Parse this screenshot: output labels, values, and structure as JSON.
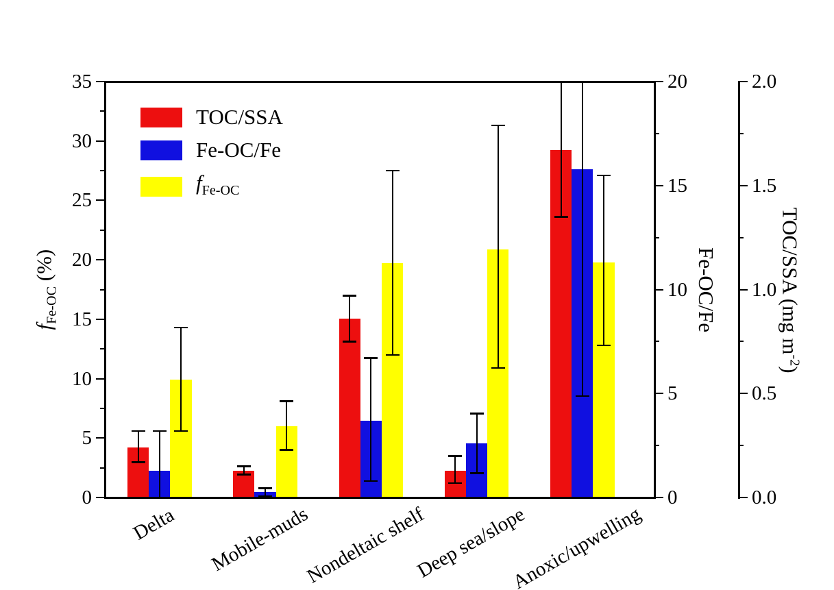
{
  "figure": {
    "background": "#ffffff"
  },
  "colors": {
    "axis": "#000000",
    "text": "#000000",
    "bar_red": "#ed0f0f",
    "bar_blue": "#1010e0",
    "bar_yellow": "#ffff00"
  },
  "chart_data": {
    "type": "bar",
    "title": "",
    "grid": false,
    "legend_position": "top-left-inside",
    "categories": [
      "Delta",
      "Mobile-muds",
      "Nondeltaic shelf",
      "Deep sea/slope",
      "Anoxic/upwelling"
    ],
    "series": [
      {
        "name": "TOC/SSA",
        "color": "#ed0f0f",
        "axis": "right2",
        "values": [
          0.24,
          0.13,
          0.86,
          0.13,
          1.67
        ],
        "err_lo": [
          0.17,
          0.11,
          0.75,
          0.07,
          1.35
        ],
        "err_hi": [
          0.32,
          0.15,
          0.97,
          0.2,
          2.0
        ],
        "cap_lo": [
          1,
          1,
          1,
          1,
          1
        ],
        "cap_hi": [
          1,
          1,
          1,
          1,
          0
        ]
      },
      {
        "name": "Fe-OC/Fe",
        "color": "#1010e0",
        "axis": "right1",
        "values": [
          1.3,
          0.25,
          3.7,
          2.6,
          15.8
        ],
        "err_lo": [
          0.0,
          0.07,
          0.8,
          1.17,
          4.87
        ],
        "err_hi": [
          3.2,
          0.44,
          6.7,
          4.04,
          20.0
        ],
        "cap_lo": [
          0,
          1,
          1,
          1,
          1
        ],
        "cap_hi": [
          1,
          1,
          1,
          1,
          0
        ]
      },
      {
        "name": "f_Fe-OC",
        "color": "#ffff00",
        "axis": "left",
        "values": [
          9.9,
          6.0,
          19.7,
          20.9,
          19.8
        ],
        "err_lo": [
          5.6,
          4.0,
          12.0,
          10.9,
          12.8
        ],
        "err_hi": [
          14.3,
          8.1,
          27.5,
          31.3,
          27.1
        ],
        "cap_lo": [
          1,
          1,
          1,
          1,
          1
        ],
        "cap_hi": [
          1,
          1,
          1,
          1,
          1
        ]
      }
    ],
    "axes": {
      "left": {
        "label_italic": "f",
        "label_sub": "Fe-OC",
        "label_suffix": " (%)",
        "min": 0,
        "max": 35,
        "major_step": 5,
        "minor_step": 2.5,
        "tick_labels": [
          "0",
          "5",
          "10",
          "15",
          "20",
          "25",
          "30",
          "35"
        ]
      },
      "right1": {
        "label": "Fe-OC/Fe",
        "min": 0,
        "max": 20,
        "major_step": 5,
        "minor_step": 2.5,
        "tick_labels": [
          "0",
          "5",
          "10",
          "15",
          "20"
        ]
      },
      "right2": {
        "label_main": "TOC/SSA (mg m",
        "label_sup": "-2",
        "label_end": ")",
        "min": 0,
        "max": 2,
        "major_step": 0.5,
        "minor_step": 0.25,
        "tick_labels": [
          "0.0",
          "0.5",
          "1.0",
          "1.5",
          "2.0"
        ]
      }
    },
    "legend": {
      "entries": [
        {
          "label": "TOC/SSA",
          "color": "#ed0f0f"
        },
        {
          "label": "Fe-OC/Fe",
          "color": "#1010e0"
        },
        {
          "label": "f_Fe-OC",
          "label_italic": "f",
          "label_sub": "Fe-OC",
          "color": "#ffff00"
        }
      ]
    }
  }
}
